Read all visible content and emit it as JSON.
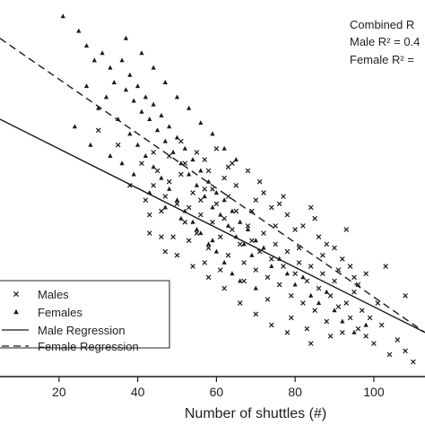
{
  "chart_data": {
    "type": "scatter",
    "xlabel": "Number of shuttles (#)",
    "xlim": [
      5,
      113
    ],
    "ylim": [
      0,
      100
    ],
    "x_ticks": [
      20,
      40,
      60,
      80,
      100
    ],
    "grid": false,
    "legend_position": "bottom-left",
    "annotations": [
      {
        "id": "combined",
        "text": "Combined R"
      },
      {
        "id": "male",
        "text": "Male R² = 0.4"
      },
      {
        "id": "female",
        "text": "Female R² ="
      }
    ],
    "series": [
      {
        "name": "Males",
        "marker": "x",
        "points": [
          [
            30,
            67
          ],
          [
            35,
            63
          ],
          [
            38,
            52
          ],
          [
            41,
            58
          ],
          [
            42,
            48
          ],
          [
            43,
            44
          ],
          [
            44,
            52
          ],
          [
            45,
            56
          ],
          [
            46,
            45
          ],
          [
            47,
            49
          ],
          [
            48,
            53
          ],
          [
            49,
            38
          ],
          [
            50,
            47
          ],
          [
            51,
            55
          ],
          [
            52,
            42
          ],
          [
            53,
            46
          ],
          [
            54,
            50
          ],
          [
            55,
            39
          ],
          [
            56,
            44
          ],
          [
            57,
            51
          ],
          [
            58,
            35
          ],
          [
            59,
            42
          ],
          [
            60,
            47
          ],
          [
            61,
            38
          ],
          [
            62,
            43
          ],
          [
            63,
            33
          ],
          [
            64,
            40
          ],
          [
            65,
            45
          ],
          [
            66,
            36
          ],
          [
            67,
            31
          ],
          [
            68,
            41
          ],
          [
            69,
            37
          ],
          [
            70,
            29
          ],
          [
            71,
            34
          ],
          [
            72,
            39
          ],
          [
            73,
            27
          ],
          [
            74,
            32
          ],
          [
            75,
            36
          ],
          [
            76,
            25
          ],
          [
            77,
            30
          ],
          [
            78,
            34
          ],
          [
            79,
            22
          ],
          [
            80,
            28
          ],
          [
            81,
            31
          ],
          [
            82,
            20
          ],
          [
            83,
            26
          ],
          [
            84,
            30
          ],
          [
            85,
            18
          ],
          [
            86,
            24
          ],
          [
            87,
            28
          ],
          [
            88,
            15
          ],
          [
            89,
            22
          ],
          [
            90,
            26
          ],
          [
            91,
            19
          ],
          [
            92,
            12
          ],
          [
            93,
            20
          ],
          [
            94,
            16
          ],
          [
            95,
            23
          ],
          [
            96,
            13
          ],
          [
            97,
            18
          ],
          [
            98,
            11
          ],
          [
            99,
            16
          ],
          [
            100,
            9
          ],
          [
            102,
            14
          ],
          [
            104,
            6
          ],
          [
            106,
            10
          ],
          [
            108,
            7
          ],
          [
            110,
            4
          ],
          [
            48,
            60
          ],
          [
            52,
            58
          ],
          [
            55,
            61
          ],
          [
            58,
            56
          ],
          [
            62,
            54
          ],
          [
            65,
            52
          ],
          [
            70,
            48
          ],
          [
            74,
            46
          ],
          [
            78,
            44
          ],
          [
            82,
            41
          ],
          [
            86,
            38
          ],
          [
            90,
            35
          ],
          [
            94,
            30
          ],
          [
            98,
            28
          ],
          [
            46,
            38
          ],
          [
            50,
            33
          ],
          [
            54,
            30
          ],
          [
            58,
            27
          ],
          [
            62,
            24
          ],
          [
            66,
            20
          ],
          [
            70,
            17
          ],
          [
            74,
            14
          ],
          [
            78,
            12
          ],
          [
            84,
            9
          ],
          [
            60,
            62
          ],
          [
            64,
            58
          ],
          [
            68,
            56
          ],
          [
            72,
            50
          ],
          [
            76,
            47
          ],
          [
            80,
            40
          ],
          [
            85,
            43
          ],
          [
            88,
            36
          ],
          [
            92,
            32
          ],
          [
            96,
            25
          ],
          [
            43,
            39
          ],
          [
            47,
            34
          ],
          [
            53,
            37
          ],
          [
            57,
            31
          ],
          [
            61,
            29
          ],
          [
            67,
            26
          ],
          [
            73,
            21
          ],
          [
            79,
            16
          ],
          [
            83,
            13
          ],
          [
            89,
            11
          ],
          [
            56,
            48
          ],
          [
            59,
            51
          ],
          [
            63,
            49
          ],
          [
            69,
            45
          ],
          [
            75,
            41
          ],
          [
            81,
            35
          ],
          [
            87,
            33
          ],
          [
            91,
            29
          ],
          [
            95,
            27
          ],
          [
            101,
            20
          ],
          [
            44,
            61
          ],
          [
            51,
            64
          ],
          [
            57,
            59
          ],
          [
            63,
            57
          ],
          [
            71,
            53
          ],
          [
            77,
            49
          ],
          [
            84,
            46
          ],
          [
            93,
            40
          ],
          [
            103,
            30
          ],
          [
            108,
            22
          ]
        ]
      },
      {
        "name": "Females",
        "marker": "triangle",
        "points": [
          [
            21,
            98
          ],
          [
            25,
            94
          ],
          [
            27,
            90
          ],
          [
            29,
            86
          ],
          [
            31,
            88
          ],
          [
            33,
            84
          ],
          [
            34,
            80
          ],
          [
            36,
            86
          ],
          [
            37,
            78
          ],
          [
            38,
            82
          ],
          [
            39,
            75
          ],
          [
            40,
            79
          ],
          [
            41,
            72
          ],
          [
            42,
            76
          ],
          [
            43,
            70
          ],
          [
            44,
            74
          ],
          [
            45,
            67
          ],
          [
            46,
            71
          ],
          [
            47,
            64
          ],
          [
            48,
            68
          ],
          [
            49,
            61
          ],
          [
            50,
            65
          ],
          [
            51,
            58
          ],
          [
            52,
            62
          ],
          [
            53,
            55
          ],
          [
            54,
            59
          ],
          [
            55,
            52
          ],
          [
            56,
            56
          ],
          [
            57,
            49
          ],
          [
            58,
            53
          ],
          [
            59,
            46
          ],
          [
            60,
            50
          ],
          [
            61,
            44
          ],
          [
            62,
            48
          ],
          [
            63,
            41
          ],
          [
            64,
            45
          ],
          [
            65,
            38
          ],
          [
            66,
            42
          ],
          [
            67,
            36
          ],
          [
            68,
            40
          ],
          [
            69,
            33
          ],
          [
            70,
            37
          ],
          [
            72,
            35
          ],
          [
            74,
            30
          ],
          [
            76,
            32
          ],
          [
            78,
            28
          ],
          [
            80,
            25
          ],
          [
            82,
            27
          ],
          [
            84,
            22
          ],
          [
            86,
            20
          ],
          [
            88,
            23
          ],
          [
            90,
            18
          ],
          [
            92,
            15
          ],
          [
            95,
            12
          ],
          [
            98,
            14
          ],
          [
            27,
            79
          ],
          [
            30,
            73
          ],
          [
            32,
            76
          ],
          [
            35,
            70
          ],
          [
            38,
            66
          ],
          [
            40,
            63
          ],
          [
            42,
            60
          ],
          [
            44,
            57
          ],
          [
            46,
            54
          ],
          [
            48,
            51
          ],
          [
            50,
            48
          ],
          [
            52,
            45
          ],
          [
            54,
            42
          ],
          [
            56,
            39
          ],
          [
            58,
            36
          ],
          [
            60,
            34
          ],
          [
            62,
            31
          ],
          [
            64,
            28
          ],
          [
            66,
            26
          ],
          [
            70,
            24
          ],
          [
            37,
            92
          ],
          [
            41,
            88
          ],
          [
            44,
            84
          ],
          [
            47,
            80
          ],
          [
            50,
            76
          ],
          [
            53,
            73
          ],
          [
            56,
            69
          ],
          [
            59,
            66
          ],
          [
            62,
            62
          ],
          [
            65,
            59
          ],
          [
            24,
            68
          ],
          [
            28,
            63
          ],
          [
            33,
            60
          ],
          [
            36,
            58
          ],
          [
            39,
            55
          ],
          [
            43,
            50
          ],
          [
            47,
            46
          ],
          [
            51,
            43
          ],
          [
            55,
            40
          ],
          [
            59,
            37
          ]
        ]
      },
      {
        "name": "Male Regression",
        "style": "solid",
        "line": [
          [
            5,
            70
          ],
          [
            113,
            12
          ]
        ]
      },
      {
        "name": "Female Regression",
        "style": "dashed",
        "line": [
          [
            5,
            92
          ],
          [
            113,
            12
          ]
        ]
      }
    ]
  }
}
